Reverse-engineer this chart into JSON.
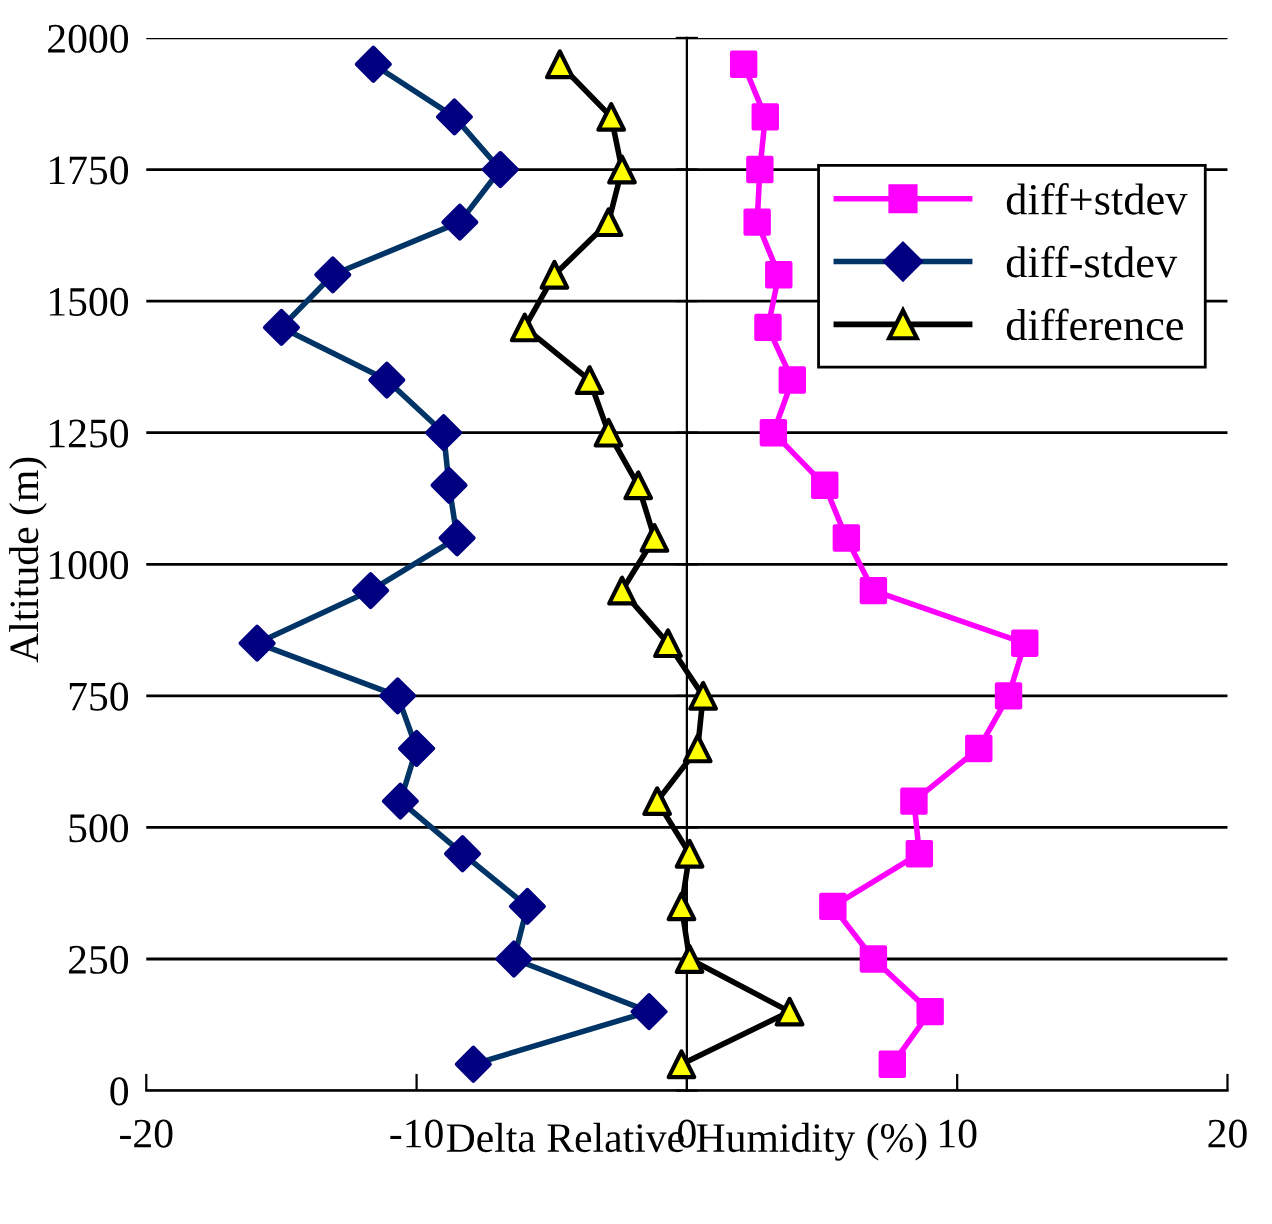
{
  "chart_data": {
    "type": "line",
    "xlabel": "Delta Relative Humidity (%)",
    "ylabel": "Altitude (m)",
    "xlim": [
      -20,
      20
    ],
    "xticks": [
      -20,
      -10,
      0,
      10,
      20
    ],
    "ylim": [
      0,
      2000
    ],
    "yticks": [
      0,
      250,
      500,
      750,
      1000,
      1250,
      1500,
      1750,
      2000
    ],
    "grid": "y",
    "legend": "top right",
    "line_style": "solid",
    "series": [
      {
        "name": "diff+stdev",
        "color": "#ff00ff",
        "marker": "square",
        "values": [
          1950,
          1850,
          1750,
          1650,
          1550,
          1450,
          1350,
          1250,
          1150,
          1050,
          950,
          850,
          750,
          650,
          550,
          450,
          350,
          250,
          150,
          50
        ],
        "x": [
          2.1,
          2.9,
          2.7,
          2.6,
          3.4,
          3.0,
          3.9,
          3.2,
          5.1,
          5.9,
          6.9,
          12.5,
          11.9,
          10.8,
          8.4,
          8.6,
          5.4,
          6.9,
          9.0,
          7.6
        ]
      },
      {
        "name": "diff-stdev",
        "color": "#003366",
        "colors": [
          "#000080",
          "#000080",
          "#000080",
          "#000080",
          "#000080",
          "#000080",
          "#000080",
          "#000080",
          "#000080",
          "#000080",
          "#000080",
          "#000080",
          "#000080",
          "#000080",
          "#000080",
          "#000080",
          "#000080",
          "#000080",
          "#000080",
          "#000080"
        ],
        "marker": "diamond",
        "values": [
          1950,
          1850,
          1750,
          1650,
          1550,
          1450,
          1350,
          1250,
          1150,
          1050,
          950,
          850,
          750,
          650,
          550,
          450,
          350,
          250,
          150,
          50
        ],
        "x": [
          -11.6,
          -8.6,
          -6.9,
          -8.4,
          -13.1,
          -15.0,
          -11.1,
          -9.0,
          -8.8,
          -8.5,
          -11.7,
          -15.9,
          -10.7,
          -10.0,
          -10.6,
          -8.3,
          -5.9,
          -6.4,
          -1.4,
          -7.9
        ]
      },
      {
        "name": "difference",
        "color": "#000000",
        "colors": [
          "#ffff00",
          "#ffff00",
          "#ffff00",
          "#ffff00",
          "#ffff00",
          "#ffff00",
          "#ffff00",
          "#ffff00",
          "#ffff00",
          "#ffff00",
          "#ffff00",
          "#ffff00",
          "#ffff00",
          "#ffff00",
          "#ffff00",
          "#ffff00",
          "#ffff00",
          "#ffff00",
          "#ffff00",
          "#ffff00"
        ],
        "marker": "triangle",
        "values": [
          1950,
          1850,
          1750,
          1650,
          1550,
          1450,
          1350,
          1250,
          1150,
          1050,
          950,
          850,
          750,
          650,
          550,
          450,
          350,
          250,
          150,
          50
        ],
        "x": [
          -4.7,
          -2.8,
          -2.4,
          -2.9,
          -4.9,
          -6.0,
          -3.6,
          -2.9,
          -1.8,
          -1.2,
          -2.4,
          -0.7,
          0.6,
          0.4,
          -1.1,
          0.1,
          -0.2,
          0.1,
          3.8,
          -0.2
        ]
      }
    ]
  }
}
